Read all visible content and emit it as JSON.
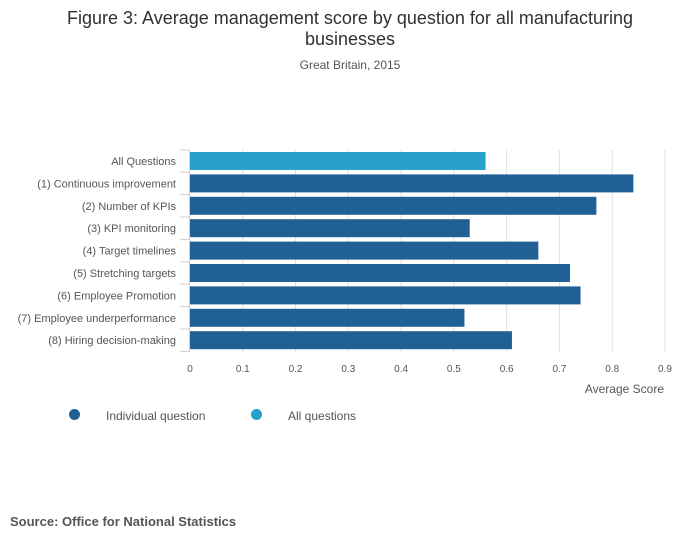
{
  "chart_data": {
    "type": "bar",
    "orientation": "horizontal",
    "title": "Figure 3: Average management score by question for all manufacturing businesses",
    "subtitle": "Great Britain, 2015",
    "xlabel": "Average Score",
    "ylabel": "",
    "xlim": [
      0,
      0.9
    ],
    "xticks": [
      "0",
      "0.1",
      "0.2",
      "0.3",
      "0.4",
      "0.5",
      "0.6",
      "0.7",
      "0.8",
      "0.9"
    ],
    "grid": true,
    "categories": [
      "All Questions",
      "(1) Continuous improvement",
      "(2) Number of KPIs",
      "(3) KPI monitoring",
      "(4) Target timelines",
      "(5) Stretching targets",
      "(6) Employee Promotion",
      "(7) Employee underperformance",
      "(8) Hiring decision-making"
    ],
    "values": [
      0.56,
      0.84,
      0.77,
      0.53,
      0.66,
      0.72,
      0.74,
      0.52,
      0.61
    ],
    "bar_series": [
      "all",
      "individual",
      "individual",
      "individual",
      "individual",
      "individual",
      "individual",
      "individual",
      "individual"
    ],
    "series": [
      {
        "name": "Individual question",
        "key": "individual",
        "color": "#206095"
      },
      {
        "name": "All questions",
        "key": "all",
        "color": "#27a0cc"
      }
    ],
    "legend_position": "bottom-left"
  },
  "source": "Source: Office for National Statistics"
}
